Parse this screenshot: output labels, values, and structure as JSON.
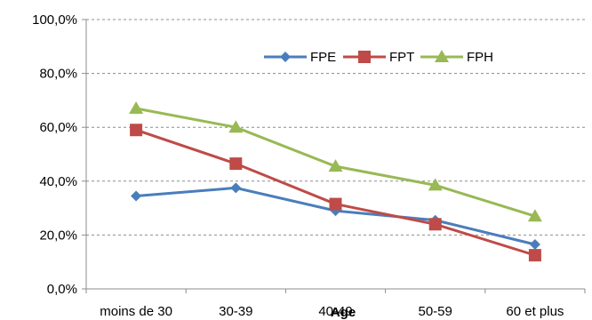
{
  "chart_data": {
    "type": "line",
    "xlabel": "Age",
    "ylabel": "",
    "categories": [
      "moins de 30",
      "30-39",
      "40-49",
      "50-59",
      "60 et plus"
    ],
    "ylim": [
      0,
      100
    ],
    "yticks": [
      "0,0%",
      "20,0%",
      "40,0%",
      "60,0%",
      "80,0%",
      "100,0%"
    ],
    "grid": true,
    "legend_position": "top-right",
    "series": [
      {
        "name": "FPE",
        "color": "#4a7ebb",
        "marker": "diamond",
        "values": [
          34.5,
          37.5,
          29.0,
          25.5,
          16.5
        ]
      },
      {
        "name": "FPT",
        "color": "#be4b48",
        "marker": "square",
        "values": [
          59.0,
          46.5,
          31.5,
          24.0,
          12.5
        ]
      },
      {
        "name": "FPH",
        "color": "#98b954",
        "marker": "triangle",
        "values": [
          67.0,
          60.0,
          45.5,
          38.5,
          27.0
        ]
      }
    ]
  }
}
